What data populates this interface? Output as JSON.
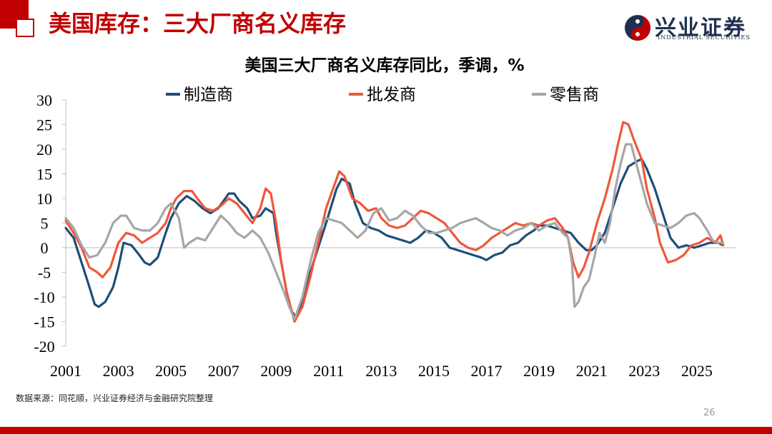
{
  "slide": {
    "title": "美国库存：三大厂商名义库存",
    "page_number": "26",
    "source": "数据来源：同花顺，兴业证券经济与金融研究院整理",
    "logo": {
      "name": "兴业证券",
      "english": "INDUSTRIAL SECURITIES"
    }
  },
  "colors": {
    "accent": "#c00000",
    "manufacturer": "#1f4e79",
    "wholesale": "#f0573b",
    "retail": "#a6a6a6"
  },
  "chart_data": {
    "type": "line",
    "title": "美国三大厂商名义库存同比，季调，%",
    "ylim": [
      -20,
      30
    ],
    "yticks": [
      30,
      25,
      20,
      15,
      10,
      5,
      0,
      -5,
      -10,
      -15,
      -20
    ],
    "xlim": [
      2001,
      2026.5
    ],
    "xticks": [
      2001,
      2003,
      2005,
      2007,
      2009,
      2011,
      2013,
      2015,
      2017,
      2019,
      2021,
      2023,
      2025
    ],
    "legend_position": "top",
    "series": [
      {
        "name": "制造商",
        "color": "#1f4e79",
        "points": [
          [
            2001.0,
            4.0
          ],
          [
            2001.3,
            2.0
          ],
          [
            2001.6,
            -3.0
          ],
          [
            2001.9,
            -8.0
          ],
          [
            2002.1,
            -11.5
          ],
          [
            2002.25,
            -12.0
          ],
          [
            2002.5,
            -11.0
          ],
          [
            2002.8,
            -8.0
          ],
          [
            2003.0,
            -4.0
          ],
          [
            2003.2,
            1.0
          ],
          [
            2003.5,
            0.5
          ],
          [
            2003.8,
            -1.5
          ],
          [
            2004.0,
            -3.0
          ],
          [
            2004.2,
            -3.5
          ],
          [
            2004.5,
            -2.0
          ],
          [
            2004.8,
            3.0
          ],
          [
            2005.0,
            6.0
          ],
          [
            2005.3,
            9.0
          ],
          [
            2005.6,
            10.5
          ],
          [
            2005.9,
            9.5
          ],
          [
            2006.2,
            8.0
          ],
          [
            2006.5,
            7.0
          ],
          [
            2006.8,
            8.0
          ],
          [
            2007.0,
            9.5
          ],
          [
            2007.2,
            11.0
          ],
          [
            2007.4,
            11.0
          ],
          [
            2007.6,
            9.5
          ],
          [
            2007.9,
            8.0
          ],
          [
            2008.1,
            6.0
          ],
          [
            2008.4,
            6.5
          ],
          [
            2008.6,
            8.0
          ],
          [
            2008.9,
            7.0
          ],
          [
            2009.0,
            3.0
          ],
          [
            2009.2,
            -3.0
          ],
          [
            2009.4,
            -9.0
          ],
          [
            2009.6,
            -13.0
          ],
          [
            2009.75,
            -14.0
          ],
          [
            2010.0,
            -11.0
          ],
          [
            2010.3,
            -5.0
          ],
          [
            2010.6,
            0.0
          ],
          [
            2010.9,
            5.0
          ],
          [
            2011.1,
            8.5
          ],
          [
            2011.3,
            12.0
          ],
          [
            2011.5,
            14.0
          ],
          [
            2011.8,
            13.0
          ],
          [
            2012.0,
            9.0
          ],
          [
            2012.3,
            5.0
          ],
          [
            2012.6,
            4.0
          ],
          [
            2012.9,
            3.5
          ],
          [
            2013.2,
            2.5
          ],
          [
            2013.5,
            2.0
          ],
          [
            2013.8,
            1.5
          ],
          [
            2014.1,
            1.0
          ],
          [
            2014.4,
            2.0
          ],
          [
            2014.7,
            3.5
          ],
          [
            2015.0,
            3.0
          ],
          [
            2015.3,
            2.0
          ],
          [
            2015.6,
            0.0
          ],
          [
            2015.9,
            -0.5
          ],
          [
            2016.2,
            -1.0
          ],
          [
            2016.5,
            -1.5
          ],
          [
            2016.8,
            -2.0
          ],
          [
            2017.0,
            -2.5
          ],
          [
            2017.3,
            -1.5
          ],
          [
            2017.6,
            -1.0
          ],
          [
            2017.9,
            0.5
          ],
          [
            2018.2,
            1.0
          ],
          [
            2018.5,
            2.5
          ],
          [
            2018.8,
            3.5
          ],
          [
            2019.0,
            4.5
          ],
          [
            2019.3,
            4.5
          ],
          [
            2019.6,
            4.0
          ],
          [
            2019.9,
            3.5
          ],
          [
            2020.2,
            3.0
          ],
          [
            2020.5,
            1.0
          ],
          [
            2020.8,
            -0.5
          ],
          [
            2021.0,
            -0.5
          ],
          [
            2021.2,
            0.5
          ],
          [
            2021.5,
            3.0
          ],
          [
            2021.8,
            8.0
          ],
          [
            2022.1,
            13.0
          ],
          [
            2022.4,
            16.5
          ],
          [
            2022.7,
            17.5
          ],
          [
            2022.9,
            18.0
          ],
          [
            2023.1,
            16.0
          ],
          [
            2023.4,
            12.0
          ],
          [
            2023.7,
            7.0
          ],
          [
            2024.0,
            2.0
          ],
          [
            2024.3,
            0.0
          ],
          [
            2024.6,
            0.5
          ],
          [
            2024.9,
            0.0
          ],
          [
            2025.2,
            0.5
          ],
          [
            2025.5,
            1.0
          ],
          [
            2025.8,
            1.0
          ],
          [
            2026.0,
            0.5
          ]
        ]
      },
      {
        "name": "批发商",
        "color": "#f0573b",
        "points": [
          [
            2001.0,
            5.5
          ],
          [
            2001.3,
            3.0
          ],
          [
            2001.6,
            0.0
          ],
          [
            2001.9,
            -4.0
          ],
          [
            2002.2,
            -5.0
          ],
          [
            2002.4,
            -6.0
          ],
          [
            2002.7,
            -4.0
          ],
          [
            2003.0,
            1.0
          ],
          [
            2003.3,
            3.0
          ],
          [
            2003.6,
            2.5
          ],
          [
            2003.9,
            1.0
          ],
          [
            2004.2,
            2.0
          ],
          [
            2004.5,
            3.0
          ],
          [
            2004.8,
            5.0
          ],
          [
            2005.0,
            8.0
          ],
          [
            2005.2,
            10.0
          ],
          [
            2005.5,
            11.5
          ],
          [
            2005.8,
            11.5
          ],
          [
            2006.0,
            10.0
          ],
          [
            2006.3,
            8.0
          ],
          [
            2006.6,
            7.5
          ],
          [
            2006.9,
            8.5
          ],
          [
            2007.2,
            10.0
          ],
          [
            2007.5,
            9.0
          ],
          [
            2007.8,
            7.0
          ],
          [
            2008.1,
            5.0
          ],
          [
            2008.4,
            8.0
          ],
          [
            2008.6,
            12.0
          ],
          [
            2008.8,
            11.0
          ],
          [
            2009.0,
            5.0
          ],
          [
            2009.2,
            -3.0
          ],
          [
            2009.4,
            -9.0
          ],
          [
            2009.7,
            -15.0
          ],
          [
            2010.0,
            -12.0
          ],
          [
            2010.3,
            -6.0
          ],
          [
            2010.6,
            1.0
          ],
          [
            2010.9,
            8.0
          ],
          [
            2011.2,
            12.5
          ],
          [
            2011.4,
            15.5
          ],
          [
            2011.6,
            14.5
          ],
          [
            2011.9,
            10.0
          ],
          [
            2012.2,
            9.0
          ],
          [
            2012.5,
            7.5
          ],
          [
            2012.8,
            8.0
          ],
          [
            2013.0,
            6.0
          ],
          [
            2013.3,
            4.5
          ],
          [
            2013.6,
            4.0
          ],
          [
            2013.9,
            4.5
          ],
          [
            2014.2,
            6.0
          ],
          [
            2014.5,
            7.5
          ],
          [
            2014.8,
            7.0
          ],
          [
            2015.1,
            6.0
          ],
          [
            2015.4,
            5.0
          ],
          [
            2015.7,
            3.0
          ],
          [
            2016.0,
            1.0
          ],
          [
            2016.3,
            0.0
          ],
          [
            2016.6,
            -0.5
          ],
          [
            2016.9,
            0.5
          ],
          [
            2017.2,
            2.0
          ],
          [
            2017.5,
            3.0
          ],
          [
            2017.8,
            4.0
          ],
          [
            2018.1,
            5.0
          ],
          [
            2018.4,
            4.5
          ],
          [
            2018.7,
            5.0
          ],
          [
            2019.0,
            4.5
          ],
          [
            2019.3,
            5.5
          ],
          [
            2019.6,
            6.0
          ],
          [
            2019.9,
            4.0
          ],
          [
            2020.1,
            2.0
          ],
          [
            2020.3,
            -3.0
          ],
          [
            2020.5,
            -6.0
          ],
          [
            2020.7,
            -4.0
          ],
          [
            2020.9,
            -1.0
          ],
          [
            2021.2,
            5.0
          ],
          [
            2021.5,
            10.0
          ],
          [
            2021.8,
            16.0
          ],
          [
            2022.0,
            21.0
          ],
          [
            2022.2,
            25.5
          ],
          [
            2022.4,
            25.0
          ],
          [
            2022.6,
            22.0
          ],
          [
            2022.9,
            18.0
          ],
          [
            2023.1,
            12.0
          ],
          [
            2023.4,
            6.0
          ],
          [
            2023.6,
            1.0
          ],
          [
            2023.9,
            -3.0
          ],
          [
            2024.2,
            -2.5
          ],
          [
            2024.5,
            -1.5
          ],
          [
            2024.8,
            0.5
          ],
          [
            2025.1,
            1.0
          ],
          [
            2025.4,
            2.0
          ],
          [
            2025.7,
            1.0
          ],
          [
            2025.9,
            2.5
          ],
          [
            2026.0,
            0.5
          ]
        ]
      },
      {
        "name": "零售商",
        "color": "#a6a6a6",
        "points": [
          [
            2001.0,
            6.0
          ],
          [
            2001.3,
            4.0
          ],
          [
            2001.6,
            0.5
          ],
          [
            2001.9,
            -2.0
          ],
          [
            2002.2,
            -1.5
          ],
          [
            2002.5,
            1.0
          ],
          [
            2002.8,
            5.0
          ],
          [
            2003.1,
            6.5
          ],
          [
            2003.3,
            6.5
          ],
          [
            2003.6,
            4.0
          ],
          [
            2003.9,
            3.5
          ],
          [
            2004.2,
            3.5
          ],
          [
            2004.5,
            5.0
          ],
          [
            2004.8,
            8.0
          ],
          [
            2005.0,
            9.0
          ],
          [
            2005.3,
            6.0
          ],
          [
            2005.5,
            0.0
          ],
          [
            2005.7,
            1.0
          ],
          [
            2006.0,
            2.0
          ],
          [
            2006.3,
            1.5
          ],
          [
            2006.6,
            4.0
          ],
          [
            2006.9,
            6.5
          ],
          [
            2007.2,
            5.0
          ],
          [
            2007.5,
            3.0
          ],
          [
            2007.8,
            2.0
          ],
          [
            2008.1,
            3.5
          ],
          [
            2008.4,
            2.0
          ],
          [
            2008.7,
            -1.0
          ],
          [
            2009.0,
            -5.0
          ],
          [
            2009.3,
            -9.0
          ],
          [
            2009.5,
            -12.0
          ],
          [
            2009.7,
            -14.5
          ],
          [
            2010.0,
            -10.0
          ],
          [
            2010.3,
            -3.0
          ],
          [
            2010.6,
            3.0
          ],
          [
            2010.9,
            6.0
          ],
          [
            2011.2,
            5.5
          ],
          [
            2011.5,
            5.0
          ],
          [
            2011.8,
            3.5
          ],
          [
            2012.1,
            2.0
          ],
          [
            2012.4,
            3.5
          ],
          [
            2012.7,
            7.0
          ],
          [
            2013.0,
            8.0
          ],
          [
            2013.3,
            5.5
          ],
          [
            2013.6,
            6.0
          ],
          [
            2013.9,
            7.5
          ],
          [
            2014.2,
            6.5
          ],
          [
            2014.5,
            4.5
          ],
          [
            2014.8,
            3.0
          ],
          [
            2015.1,
            3.0
          ],
          [
            2015.4,
            3.5
          ],
          [
            2015.7,
            4.0
          ],
          [
            2016.0,
            5.0
          ],
          [
            2016.3,
            5.5
          ],
          [
            2016.6,
            6.0
          ],
          [
            2016.9,
            5.0
          ],
          [
            2017.2,
            4.0
          ],
          [
            2017.5,
            3.5
          ],
          [
            2017.8,
            2.5
          ],
          [
            2018.1,
            3.5
          ],
          [
            2018.4,
            4.0
          ],
          [
            2018.7,
            5.0
          ],
          [
            2019.0,
            3.5
          ],
          [
            2019.3,
            4.5
          ],
          [
            2019.6,
            5.0
          ],
          [
            2019.9,
            3.0
          ],
          [
            2020.1,
            2.0
          ],
          [
            2020.25,
            -3.0
          ],
          [
            2020.35,
            -12.0
          ],
          [
            2020.5,
            -11.0
          ],
          [
            2020.7,
            -8.0
          ],
          [
            2020.9,
            -6.5
          ],
          [
            2021.1,
            -2.0
          ],
          [
            2021.3,
            3.0
          ],
          [
            2021.5,
            1.0
          ],
          [
            2021.7,
            5.0
          ],
          [
            2021.9,
            12.0
          ],
          [
            2022.1,
            17.0
          ],
          [
            2022.3,
            21.0
          ],
          [
            2022.5,
            21.0
          ],
          [
            2022.7,
            17.0
          ],
          [
            2022.9,
            13.0
          ],
          [
            2023.1,
            9.0
          ],
          [
            2023.4,
            5.0
          ],
          [
            2023.7,
            4.5
          ],
          [
            2024.0,
            4.0
          ],
          [
            2024.3,
            5.0
          ],
          [
            2024.6,
            6.5
          ],
          [
            2024.9,
            7.0
          ],
          [
            2025.1,
            6.0
          ],
          [
            2025.4,
            3.5
          ],
          [
            2025.6,
            1.5
          ],
          [
            2025.8,
            1.0
          ],
          [
            2026.0,
            1.0
          ]
        ]
      }
    ]
  }
}
